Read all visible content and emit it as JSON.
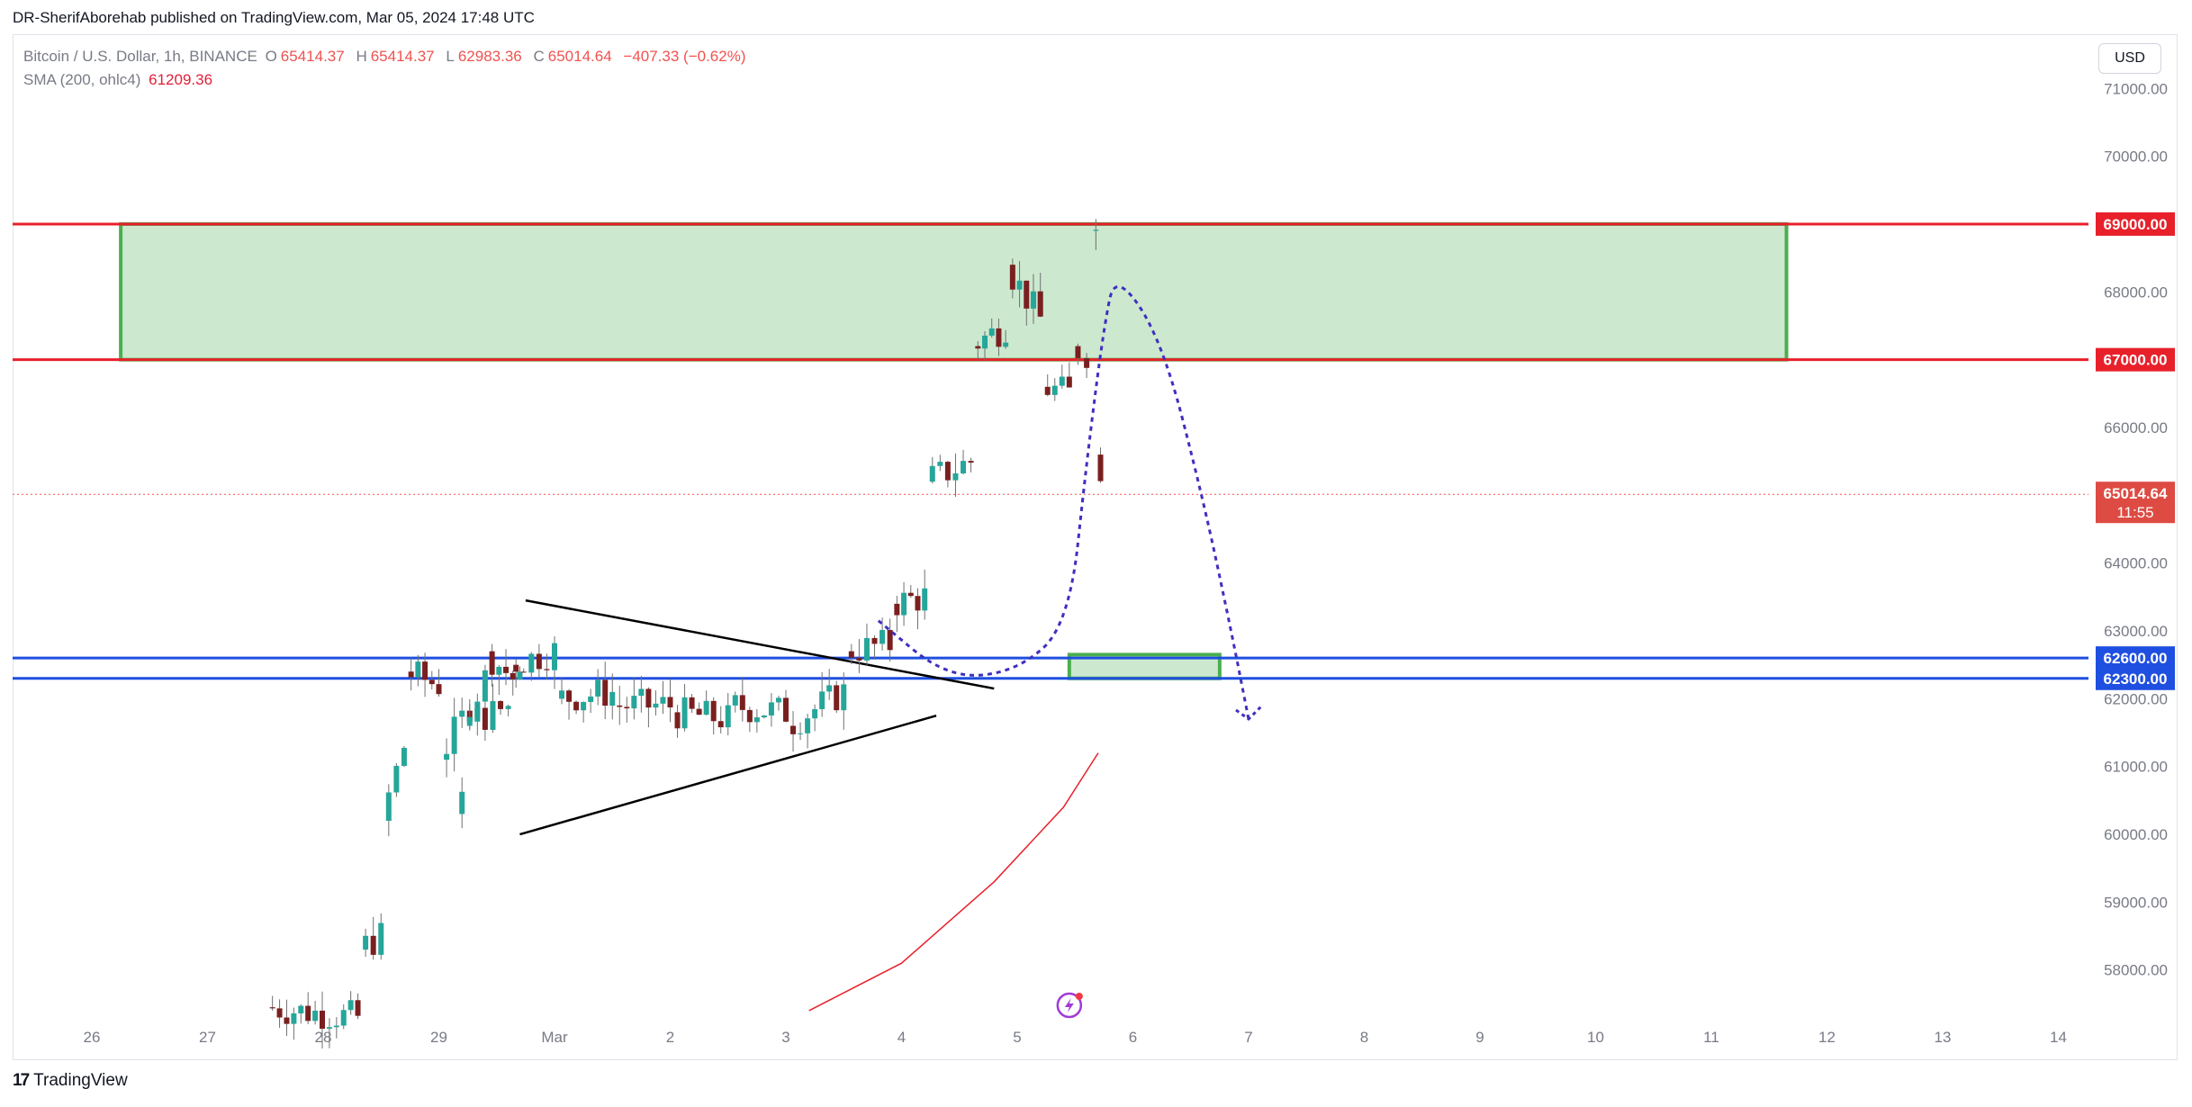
{
  "header": {
    "published_text": "DR-SherifAborehab published on TradingView.com, Mar 05, 2024 17:48 UTC"
  },
  "legend": {
    "symbol": "Bitcoin / U.S. Dollar, 1h, BINANCE",
    "o_label": "O",
    "o_value": "65414.37",
    "h_label": "H",
    "h_value": "65414.37",
    "l_label": "L",
    "l_value": "62983.36",
    "c_label": "C",
    "c_value": "65014.64",
    "change": "−407.33 (−0.62%)",
    "sma_label": "SMA (200, ohlc4)",
    "sma_value": "61209.36"
  },
  "currency_button": "USD",
  "footer": {
    "logo_mark": "17",
    "logo_text": "TradingView"
  },
  "colors": {
    "up": "#26a69a",
    "down": "#ef5350",
    "candle_body_down": "#7a1f1f",
    "resistance": "#e8202a",
    "support": "#1f4fe0",
    "zone_fill": "#cce9cf",
    "zone_border": "#4cae4f",
    "projection": "#3f2fc0",
    "sma": "#e8202a",
    "trendline": "#000000",
    "grid": "#f0f3fa",
    "axis_text": "#787b86"
  },
  "chart_data": {
    "type": "candlestick",
    "title": "Bitcoin / U.S. Dollar, 1h, BINANCE",
    "x_ticks": [
      "26",
      "27",
      "28",
      "29",
      "Mar",
      "2",
      "3",
      "4",
      "5",
      "6",
      "7",
      "8",
      "9",
      "10",
      "11",
      "12",
      "13",
      "14"
    ],
    "y_ticks": [
      "58000.00",
      "59000.00",
      "60000.00",
      "61000.00",
      "62000.00",
      "63000.00",
      "64000.00",
      "65000.00",
      "66000.00",
      "67000.00",
      "68000.00",
      "69000.00",
      "70000.00",
      "71000.00"
    ],
    "ylim": [
      57200,
      71800
    ],
    "x_range_days": [
      25.7,
      14.5
    ],
    "last_price": "65014.64",
    "countdown": "11:55",
    "horizontal_levels": [
      {
        "value": 69000,
        "label": "69000.00",
        "color": "resistance"
      },
      {
        "value": 67000,
        "label": "67000.00",
        "color": "resistance"
      },
      {
        "value": 62600,
        "label": "62600.00",
        "color": "support"
      },
      {
        "value": 62300,
        "label": "62300.00",
        "color": "support"
      }
    ],
    "zones": [
      {
        "x0": 26.25,
        "x1": 11.65,
        "y0": 67000,
        "y1": 69000
      },
      {
        "x0": 5.45,
        "x1": 6.75,
        "y0": 62300,
        "y1": 62650
      }
    ],
    "triangle": {
      "upper": [
        [
          29.75,
          63450
        ],
        [
          4.8,
          62150
        ]
      ],
      "lower": [
        [
          29.7,
          60000
        ],
        [
          4.3,
          61750
        ]
      ]
    },
    "projection_path": [
      [
        3.8,
        63150
      ],
      [
        4.4,
        62300
      ],
      [
        5.0,
        62400
      ],
      [
        5.45,
        63100
      ],
      [
        5.6,
        65500
      ],
      [
        5.75,
        67500
      ],
      [
        5.85,
        68300
      ],
      [
        6.25,
        67300
      ],
      [
        6.6,
        65000
      ],
      [
        6.85,
        63000
      ],
      [
        7.0,
        61700
      ]
    ],
    "sma_path": [
      [
        3.2,
        57400
      ],
      [
        4.0,
        58100
      ],
      [
        4.8,
        59300
      ],
      [
        5.4,
        60400
      ],
      [
        5.7,
        61200
      ]
    ],
    "candles_note": "approximate hourly OHLC path reconstructed from the chart",
    "candles": [
      {
        "day": 27.5,
        "open": 57300,
        "close": 57450
      },
      {
        "day": 28.3,
        "open": 57300,
        "close": 58300
      },
      {
        "day": 28.5,
        "open": 58500,
        "close": 60200
      },
      {
        "day": 28.7,
        "open": 61300,
        "close": 62400
      },
      {
        "day": 29.0,
        "open": 62200,
        "close": 61100
      },
      {
        "day": 29.4,
        "open": 62300,
        "close": 62700
      },
      {
        "day": 29.7,
        "open": 62200,
        "close": 60300
      },
      {
        "day": 0.2,
        "open": 60800,
        "close": 61600
      },
      {
        "day": 0.6,
        "open": 61900,
        "close": 62500
      },
      {
        "day": 1.0,
        "open": 62700,
        "close": 62000
      },
      {
        "day": 1.5,
        "open": 62100,
        "close": 61900
      },
      {
        "day": 2.0,
        "open": 61900,
        "close": 61800
      },
      {
        "day": 2.5,
        "open": 61700,
        "close": 61900
      },
      {
        "day": 3.0,
        "open": 61800,
        "close": 61600
      },
      {
        "day": 3.5,
        "open": 62100,
        "close": 62700
      },
      {
        "day": 3.9,
        "open": 62800,
        "close": 63400
      },
      {
        "day": 4.2,
        "open": 63500,
        "close": 65200
      },
      {
        "day": 4.6,
        "open": 65500,
        "close": 67200
      },
      {
        "day": 4.9,
        "open": 67500,
        "close": 68400
      },
      {
        "day": 5.2,
        "open": 67600,
        "close": 66600
      },
      {
        "day": 5.45,
        "open": 66500,
        "close": 67200
      },
      {
        "day": 5.6,
        "open": 67100,
        "close": 68900
      },
      {
        "day": 5.68,
        "open": 68900,
        "close": 65600
      },
      {
        "day": 5.72,
        "open": 65414.37,
        "close": 65014.64
      }
    ]
  }
}
